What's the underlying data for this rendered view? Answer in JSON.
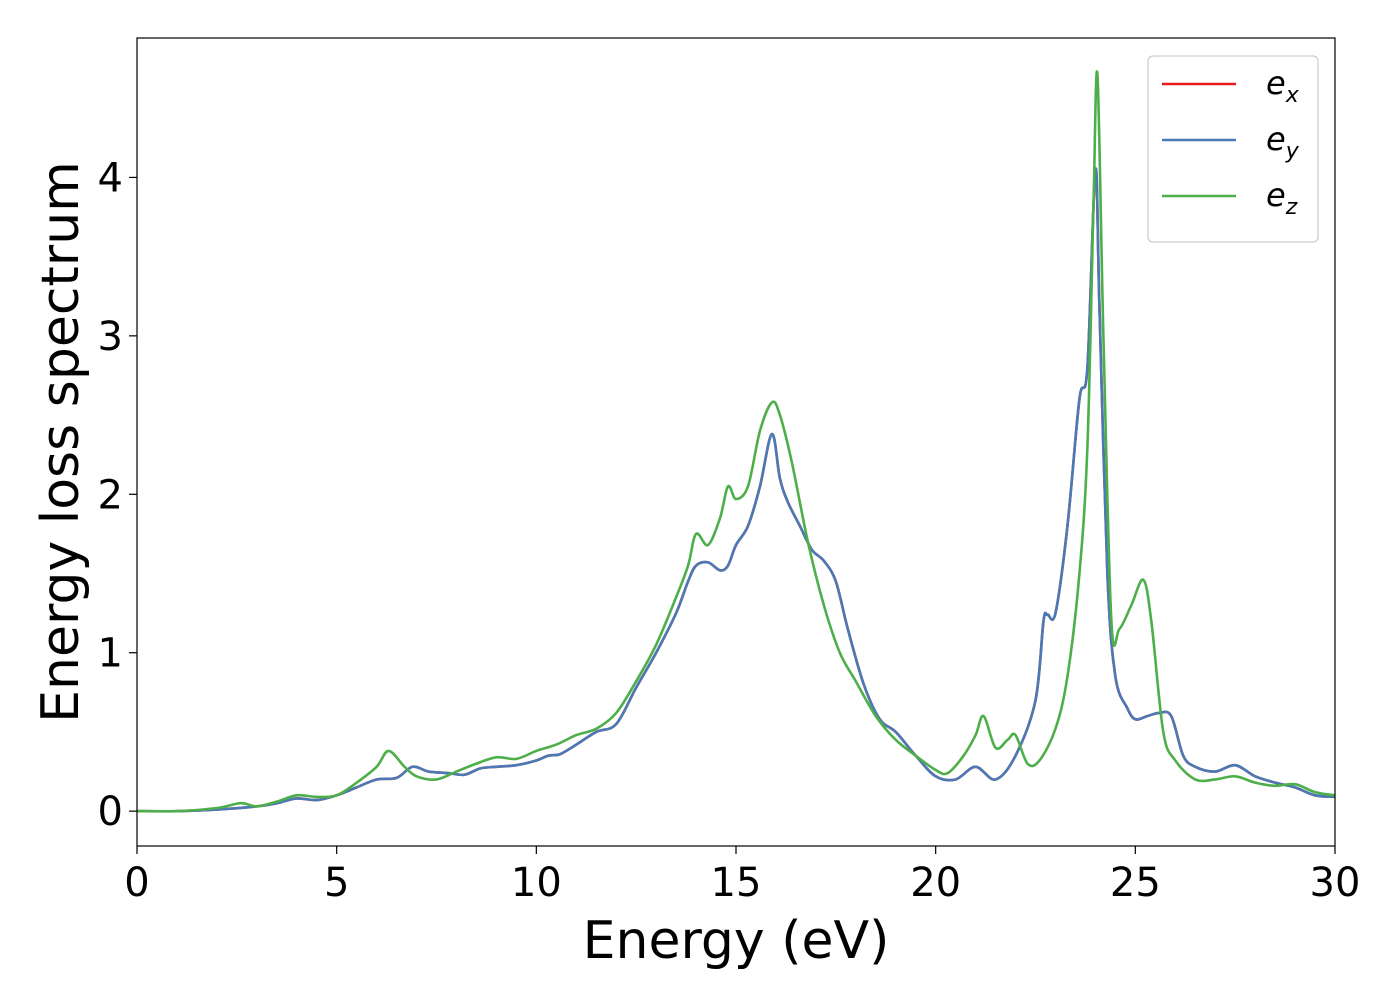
{
  "chart_data": {
    "type": "line",
    "xlabel": "Energy (eV)",
    "ylabel": "Energy loss spectrum",
    "xlim": [
      0,
      30
    ],
    "ylim": [
      -0.22,
      4.88
    ],
    "xticks": [
      "0",
      "5",
      "10",
      "15",
      "20",
      "25",
      "30"
    ],
    "yticks": [
      "0",
      "1",
      "2",
      "3",
      "4"
    ],
    "grid": false,
    "legend_position": "upper right",
    "series": [
      {
        "name": "e_x",
        "label_base": "e",
        "label_sub": "x",
        "color": "#e41a1c",
        "x": [
          0,
          1,
          2,
          3,
          3.5,
          4,
          4.5,
          5,
          5.5,
          6,
          6.5,
          6.9,
          7.3,
          7.8,
          8.2,
          8.6,
          9,
          9.5,
          10,
          10.3,
          10.6,
          11,
          11.5,
          12,
          12.5,
          13,
          13.5,
          13.8,
          14,
          14.3,
          14.6,
          14.8,
          15,
          15.3,
          15.6,
          15.9,
          16.1,
          16.3,
          16.6,
          16.9,
          17.2,
          17.5,
          17.8,
          18.2,
          18.6,
          19,
          19.5,
          20,
          20.5,
          21,
          21.5,
          22,
          22.5,
          22.7,
          22.8,
          23,
          23.3,
          23.6,
          23.8,
          24,
          24.1,
          24.3,
          24.5,
          24.8,
          25,
          25.3,
          25.6,
          25.9,
          26.2,
          26.5,
          27,
          27.5,
          28,
          28.5,
          29,
          29.5,
          30
        ],
        "values": [
          0,
          0,
          0.01,
          0.03,
          0.05,
          0.08,
          0.07,
          0.1,
          0.15,
          0.2,
          0.21,
          0.28,
          0.25,
          0.24,
          0.23,
          0.27,
          0.28,
          0.29,
          0.32,
          0.35,
          0.36,
          0.42,
          0.5,
          0.55,
          0.78,
          1.0,
          1.25,
          1.45,
          1.55,
          1.57,
          1.52,
          1.55,
          1.68,
          1.8,
          2.05,
          2.38,
          2.1,
          1.95,
          1.8,
          1.65,
          1.58,
          1.45,
          1.15,
          0.8,
          0.58,
          0.5,
          0.35,
          0.22,
          0.2,
          0.28,
          0.2,
          0.35,
          0.7,
          1.2,
          1.24,
          1.25,
          1.8,
          2.6,
          2.8,
          4.05,
          3.2,
          1.5,
          0.85,
          0.65,
          0.58,
          0.6,
          0.62,
          0.6,
          0.35,
          0.28,
          0.25,
          0.29,
          0.22,
          0.18,
          0.15,
          0.1,
          0.09
        ]
      },
      {
        "name": "e_y",
        "label_base": "e",
        "label_sub": "y",
        "color": "#4a7ab5",
        "x": [
          0,
          1,
          2,
          3,
          3.5,
          4,
          4.5,
          5,
          5.5,
          6,
          6.5,
          6.9,
          7.3,
          7.8,
          8.2,
          8.6,
          9,
          9.5,
          10,
          10.3,
          10.6,
          11,
          11.5,
          12,
          12.5,
          13,
          13.5,
          13.8,
          14,
          14.3,
          14.6,
          14.8,
          15,
          15.3,
          15.6,
          15.9,
          16.1,
          16.3,
          16.6,
          16.9,
          17.2,
          17.5,
          17.8,
          18.2,
          18.6,
          19,
          19.5,
          20,
          20.5,
          21,
          21.5,
          22,
          22.5,
          22.7,
          22.8,
          23,
          23.3,
          23.6,
          23.8,
          24,
          24.1,
          24.3,
          24.5,
          24.8,
          25,
          25.3,
          25.6,
          25.9,
          26.2,
          26.5,
          27,
          27.5,
          28,
          28.5,
          29,
          29.5,
          30
        ],
        "values": [
          0,
          0,
          0.01,
          0.03,
          0.05,
          0.08,
          0.07,
          0.1,
          0.15,
          0.2,
          0.21,
          0.28,
          0.25,
          0.24,
          0.23,
          0.27,
          0.28,
          0.29,
          0.32,
          0.35,
          0.36,
          0.42,
          0.5,
          0.55,
          0.78,
          1.0,
          1.25,
          1.45,
          1.55,
          1.57,
          1.52,
          1.55,
          1.68,
          1.8,
          2.05,
          2.38,
          2.1,
          1.95,
          1.8,
          1.65,
          1.58,
          1.45,
          1.15,
          0.8,
          0.58,
          0.5,
          0.35,
          0.22,
          0.2,
          0.28,
          0.2,
          0.35,
          0.7,
          1.2,
          1.24,
          1.25,
          1.8,
          2.6,
          2.8,
          4.05,
          3.2,
          1.5,
          0.85,
          0.65,
          0.58,
          0.6,
          0.62,
          0.6,
          0.35,
          0.28,
          0.25,
          0.29,
          0.22,
          0.18,
          0.15,
          0.1,
          0.09
        ]
      },
      {
        "name": "e_z",
        "label_base": "e",
        "label_sub": "z",
        "color": "#4daf4a",
        "x": [
          0,
          1,
          2,
          2.6,
          3,
          3.5,
          4,
          4.5,
          5,
          5.5,
          6,
          6.3,
          6.7,
          7,
          7.5,
          8,
          8.5,
          9,
          9.5,
          10,
          10.5,
          11,
          11.5,
          12,
          12.5,
          13,
          13.5,
          13.8,
          14,
          14.3,
          14.6,
          14.8,
          15,
          15.3,
          15.6,
          15.9,
          16.1,
          16.4,
          16.8,
          17.2,
          17.6,
          18,
          18.5,
          19,
          19.5,
          20,
          20.3,
          20.7,
          21,
          21.2,
          21.5,
          21.8,
          22,
          22.3,
          22.6,
          23,
          23.3,
          23.6,
          23.8,
          23.95,
          24.05,
          24.2,
          24.4,
          24.6,
          24.9,
          25.2,
          25.4,
          25.7,
          26,
          26.5,
          27,
          27.5,
          28,
          28.5,
          29,
          29.5,
          30
        ],
        "values": [
          0,
          0,
          0.02,
          0.05,
          0.03,
          0.06,
          0.1,
          0.09,
          0.1,
          0.18,
          0.28,
          0.38,
          0.28,
          0.22,
          0.2,
          0.25,
          0.3,
          0.34,
          0.33,
          0.38,
          0.42,
          0.48,
          0.52,
          0.62,
          0.82,
          1.05,
          1.35,
          1.55,
          1.75,
          1.68,
          1.85,
          2.05,
          1.97,
          2.05,
          2.4,
          2.58,
          2.5,
          2.2,
          1.7,
          1.3,
          1.0,
          0.82,
          0.6,
          0.45,
          0.35,
          0.26,
          0.24,
          0.35,
          0.48,
          0.6,
          0.4,
          0.45,
          0.48,
          0.3,
          0.32,
          0.52,
          0.85,
          1.5,
          2.3,
          3.8,
          4.65,
          3.0,
          1.2,
          1.15,
          1.3,
          1.46,
          1.2,
          0.5,
          0.32,
          0.2,
          0.2,
          0.22,
          0.18,
          0.16,
          0.17,
          0.12,
          0.1
        ]
      }
    ]
  }
}
